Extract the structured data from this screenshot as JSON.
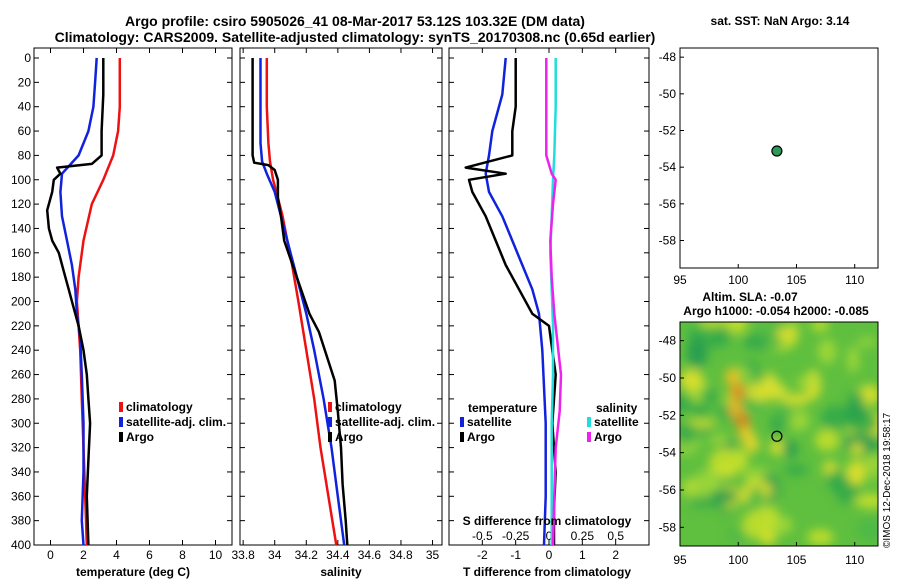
{
  "header": {
    "title_line1": "Argo profile: csiro 5905026_41 08-Mar-2017 53.12S 103.32E (DM data)",
    "title_line2": "Climatology: CARS2009. Satellite-adjusted climatology: synTS_20170308.nc (0.65d earlier)"
  },
  "colors": {
    "climatology": "#ee1111",
    "satellite": "#1122dd",
    "argo": "#000000",
    "salinity_satellite": "#22dddd",
    "salinity_argo": "#ee22ee",
    "map_dot": "#2a9a5a"
  },
  "chart_data": [
    {
      "id": "temperature",
      "type": "line",
      "xlabel": "temperature (deg C)",
      "ylabel": "",
      "xlim": [
        -1,
        11
      ],
      "ylim": [
        400,
        0
      ],
      "xticks": [
        0,
        2,
        4,
        6,
        8,
        10
      ],
      "yticks": [
        0,
        20,
        40,
        60,
        80,
        100,
        120,
        140,
        160,
        180,
        200,
        220,
        240,
        260,
        280,
        300,
        320,
        340,
        360,
        380,
        400
      ],
      "legend": {
        "position": "middle-right",
        "entries": [
          "climatology",
          "satellite-adj. clim.",
          "Argo"
        ]
      },
      "series": [
        {
          "name": "climatology",
          "color": "#ee1111",
          "points": [
            [
              4.2,
              0
            ],
            [
              4.2,
              40
            ],
            [
              4.1,
              60
            ],
            [
              3.8,
              80
            ],
            [
              3.2,
              100
            ],
            [
              2.5,
              120
            ],
            [
              2.0,
              150
            ],
            [
              1.7,
              180
            ],
            [
              1.6,
              200
            ],
            [
              1.7,
              220
            ],
            [
              1.8,
              240
            ],
            [
              1.9,
              280
            ],
            [
              2.0,
              320
            ],
            [
              2.1,
              360
            ],
            [
              2.2,
              400
            ]
          ]
        },
        {
          "name": "satellite-adj. clim.",
          "color": "#1122dd",
          "points": [
            [
              2.8,
              0
            ],
            [
              2.7,
              20
            ],
            [
              2.6,
              40
            ],
            [
              2.3,
              60
            ],
            [
              1.7,
              80
            ],
            [
              0.7,
              95
            ],
            [
              0.6,
              110
            ],
            [
              0.7,
              130
            ],
            [
              1.0,
              150
            ],
            [
              1.3,
              170
            ],
            [
              1.5,
              190
            ],
            [
              1.6,
              210
            ],
            [
              1.8,
              230
            ],
            [
              1.9,
              260
            ],
            [
              2.0,
              300
            ],
            [
              2.0,
              340
            ],
            [
              1.9,
              380
            ],
            [
              2.0,
              400
            ]
          ]
        },
        {
          "name": "Argo",
          "color": "#000000",
          "points": [
            [
              3.2,
              0
            ],
            [
              3.2,
              30
            ],
            [
              3.1,
              60
            ],
            [
              3.1,
              80
            ],
            [
              2.5,
              87
            ],
            [
              0.4,
              90
            ],
            [
              0.6,
              95
            ],
            [
              0.2,
              100
            ],
            [
              0.1,
              110
            ],
            [
              -0.2,
              125
            ],
            [
              -0.1,
              140
            ],
            [
              0.1,
              150
            ],
            [
              0.5,
              160
            ],
            [
              0.8,
              175
            ],
            [
              1.1,
              190
            ],
            [
              1.4,
              205
            ],
            [
              1.7,
              220
            ],
            [
              2.0,
              240
            ],
            [
              2.2,
              260
            ],
            [
              2.3,
              280
            ],
            [
              2.4,
              300
            ],
            [
              2.3,
              330
            ],
            [
              2.2,
              360
            ],
            [
              2.3,
              400
            ]
          ]
        }
      ]
    },
    {
      "id": "salinity",
      "type": "line",
      "xlabel": "salinity",
      "ylabel": "",
      "xlim": [
        33.78,
        35.06
      ],
      "ylim": [
        400,
        0
      ],
      "xticks": [
        33.8,
        34,
        34.2,
        34.4,
        34.6,
        34.8,
        35
      ],
      "xticklabels": [
        "33.8",
        "34",
        "34.2",
        "34.4",
        "34.6",
        "34.8",
        "35"
      ],
      "legend": {
        "position": "middle-right",
        "entries": [
          "climatology",
          "satellite-adj. clim.",
          "Argo"
        ]
      },
      "series": [
        {
          "name": "climatology",
          "color": "#ee1111",
          "points": [
            [
              33.95,
              0
            ],
            [
              33.95,
              40
            ],
            [
              33.96,
              70
            ],
            [
              33.97,
              85
            ],
            [
              33.99,
              100
            ],
            [
              34.02,
              115
            ],
            [
              34.05,
              130
            ],
            [
              34.08,
              150
            ],
            [
              34.11,
              170
            ],
            [
              34.15,
              200
            ],
            [
              34.2,
              240
            ],
            [
              34.25,
              280
            ],
            [
              34.29,
              320
            ],
            [
              34.34,
              360
            ],
            [
              34.39,
              400
            ]
          ]
        },
        {
          "name": "satellite-adj. clim.",
          "color": "#1122dd",
          "points": [
            [
              33.91,
              0
            ],
            [
              33.91,
              40
            ],
            [
              33.91,
              70
            ],
            [
              33.92,
              85
            ],
            [
              33.95,
              95
            ],
            [
              34.0,
              110
            ],
            [
              34.04,
              130
            ],
            [
              34.08,
              150
            ],
            [
              34.12,
              170
            ],
            [
              34.16,
              190
            ],
            [
              34.2,
              210
            ],
            [
              34.25,
              240
            ],
            [
              34.31,
              280
            ],
            [
              34.36,
              320
            ],
            [
              34.4,
              360
            ],
            [
              34.44,
              400
            ]
          ]
        },
        {
          "name": "Argo",
          "color": "#000000",
          "points": [
            [
              33.86,
              0
            ],
            [
              33.86,
              40
            ],
            [
              33.86,
              80
            ],
            [
              33.87,
              86
            ],
            [
              33.96,
              88
            ],
            [
              34.0,
              92
            ],
            [
              34.02,
              100
            ],
            [
              34.02,
              115
            ],
            [
              34.04,
              130
            ],
            [
              34.06,
              150
            ],
            [
              34.1,
              165
            ],
            [
              34.14,
              180
            ],
            [
              34.18,
              195
            ],
            [
              34.22,
              210
            ],
            [
              34.28,
              225
            ],
            [
              34.33,
              245
            ],
            [
              34.38,
              265
            ],
            [
              34.4,
              290
            ],
            [
              34.42,
              320
            ],
            [
              34.43,
              350
            ],
            [
              34.45,
              380
            ],
            [
              34.46,
              400
            ]
          ]
        }
      ]
    },
    {
      "id": "difference",
      "type": "line",
      "xlabel": "T difference from climatology",
      "x2label": "S difference from climatology",
      "xlim": [
        -3,
        3
      ],
      "x2lim": [
        -0.75,
        0.75
      ],
      "ylim": [
        400,
        0
      ],
      "xticks": [
        -2,
        -1,
        0,
        1,
        2
      ],
      "x2ticks": [
        -0.5,
        -0.25,
        0,
        0.25,
        0.5
      ],
      "x2ticklabels": [
        "-0.5",
        "-0.25",
        "0",
        "0.25",
        "0.5"
      ],
      "legend": {
        "temperature_title": "temperature",
        "salinity_title": "salinity",
        "entries": [
          "satellite",
          "Argo"
        ]
      },
      "series": [
        {
          "name": "temperature satellite",
          "color": "#1122dd",
          "points": [
            [
              -1.3,
              0
            ],
            [
              -1.4,
              30
            ],
            [
              -1.7,
              60
            ],
            [
              -1.8,
              80
            ],
            [
              -1.9,
              95
            ],
            [
              -1.8,
              110
            ],
            [
              -1.4,
              130
            ],
            [
              -1.1,
              150
            ],
            [
              -0.8,
              170
            ],
            [
              -0.5,
              190
            ],
            [
              -0.3,
              210
            ],
            [
              -0.2,
              240
            ],
            [
              -0.1,
              300
            ],
            [
              -0.1,
              360
            ],
            [
              -0.15,
              400
            ]
          ]
        },
        {
          "name": "temperature Argo",
          "color": "#000000",
          "points": [
            [
              -1.0,
              0
            ],
            [
              -1.0,
              40
            ],
            [
              -1.1,
              60
            ],
            [
              -1.1,
              80
            ],
            [
              -2.5,
              90
            ],
            [
              -1.3,
              95
            ],
            [
              -2.4,
              100
            ],
            [
              -2.3,
              110
            ],
            [
              -1.9,
              130
            ],
            [
              -1.6,
              150
            ],
            [
              -1.3,
              170
            ],
            [
              -0.9,
              190
            ],
            [
              -0.5,
              210
            ],
            [
              0.0,
              220
            ],
            [
              0.1,
              240
            ],
            [
              0.2,
              260
            ],
            [
              0.1,
              300
            ],
            [
              0.2,
              340
            ],
            [
              0.15,
              370
            ],
            [
              0.15,
              400
            ]
          ]
        },
        {
          "name": "salinity satellite",
          "color": "#22dddd",
          "points": [
            [
              0.05,
              0
            ],
            [
              0.05,
              40
            ],
            [
              0.04,
              80
            ],
            [
              0.03,
              100
            ],
            [
              0.02,
              130
            ],
            [
              0.01,
              160
            ],
            [
              0.02,
              190
            ],
            [
              0.03,
              220
            ],
            [
              0.03,
              260
            ],
            [
              0.02,
              300
            ],
            [
              0.02,
              340
            ],
            [
              0.02,
              400
            ]
          ]
        },
        {
          "name": "salinity Argo",
          "color": "#ee22ee",
          "points": [
            [
              -0.02,
              0
            ],
            [
              -0.02,
              40
            ],
            [
              -0.02,
              80
            ],
            [
              0.02,
              95
            ],
            [
              0.05,
              100
            ],
            [
              0.03,
              120
            ],
            [
              0.01,
              150
            ],
            [
              0.02,
              180
            ],
            [
              0.04,
              210
            ],
            [
              0.07,
              240
            ],
            [
              0.09,
              260
            ],
            [
              0.08,
              290
            ],
            [
              0.05,
              320
            ],
            [
              0.04,
              360
            ],
            [
              0.03,
              400
            ]
          ]
        }
      ]
    },
    {
      "id": "sst_map",
      "type": "scatter",
      "title": "sat. SST: NaN Argo: 3.14",
      "xlim": [
        95,
        112
      ],
      "ylim": [
        -59.5,
        -47.5
      ],
      "xticks": [
        95,
        100,
        105,
        110
      ],
      "yticks": [
        -48,
        -50,
        -52,
        -54,
        -56,
        -58
      ],
      "points": [
        [
          103.32,
          -53.12
        ]
      ]
    },
    {
      "id": "sla_map",
      "type": "heatmap",
      "title_line1": "Altim. SLA: -0.07",
      "title_line2": "Argo h1000: -0.054 h2000: -0.085",
      "xlim": [
        95,
        112
      ],
      "ylim": [
        -59,
        -47
      ],
      "xticks": [
        95,
        100,
        105,
        110
      ],
      "yticks": [
        -48,
        -50,
        -52,
        -54,
        -56,
        -58
      ],
      "marker": [
        103.32,
        -53.12
      ]
    }
  ],
  "footer": {
    "credit": "©IMOS 12-Dec-2018 19:58:17"
  }
}
